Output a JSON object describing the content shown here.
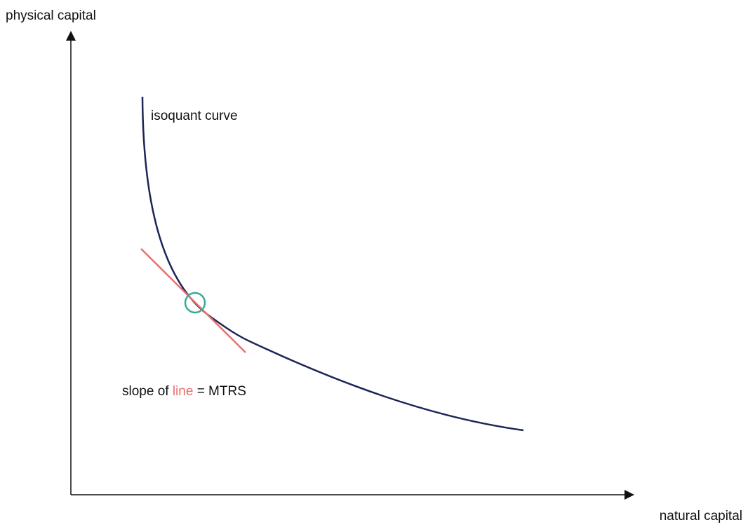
{
  "axes": {
    "y_label": "physical capital",
    "x_label": "natural capital"
  },
  "curve": {
    "label": "isoquant curve"
  },
  "annotation": {
    "prefix": "slope of",
    "highlight": "line",
    "suffix": "= MTRS"
  }
}
